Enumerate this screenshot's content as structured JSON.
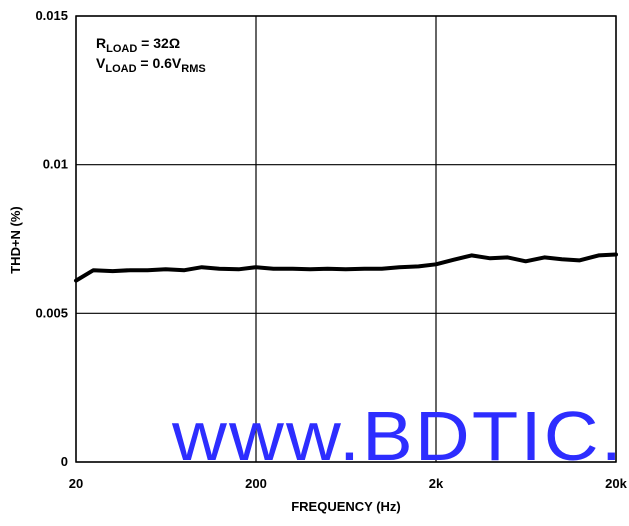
{
  "chart_data": {
    "type": "line",
    "xlabel": "FREQUENCY (Hz)",
    "ylabel": "THD+N (%)",
    "xscale": "log",
    "xlim": [
      20,
      20000
    ],
    "ylim": [
      0,
      0.015
    ],
    "x_ticks": [
      20,
      200,
      2000,
      20000
    ],
    "x_tick_labels": [
      "20",
      "200",
      "2k",
      "20k"
    ],
    "y_ticks": [
      0,
      0.005,
      0.01,
      0.015
    ],
    "y_tick_labels": [
      "0",
      "0.005",
      "0.01",
      "0.015"
    ],
    "grid": true,
    "annotation": {
      "line1": {
        "main": "R",
        "sub": "LOAD",
        "rest": " = 32Ω"
      },
      "line2": {
        "main": "V",
        "sub": "LOAD",
        "rest": " = 0.6V",
        "sub2": "RMS"
      }
    },
    "watermark": "www.BDTIC.",
    "line_color": "#000000",
    "watermark_color": "#2d2dff",
    "series": [
      {
        "x": [
          20,
          25,
          32,
          40,
          50,
          63,
          80,
          100,
          125,
          160,
          200,
          250,
          320,
          400,
          500,
          630,
          800,
          1000,
          1250,
          1600,
          2000,
          2500,
          3150,
          4000,
          5000,
          6300,
          8000,
          10000,
          12500,
          16000,
          20000
        ],
        "y": [
          0.0061,
          0.00645,
          0.00642,
          0.00645,
          0.00645,
          0.00648,
          0.00645,
          0.00655,
          0.0065,
          0.00648,
          0.00655,
          0.0065,
          0.0065,
          0.00648,
          0.0065,
          0.00648,
          0.0065,
          0.0065,
          0.00655,
          0.00658,
          0.00665,
          0.0068,
          0.00695,
          0.00685,
          0.00688,
          0.00675,
          0.00688,
          0.00682,
          0.00678,
          0.00695,
          0.00698
        ]
      }
    ]
  }
}
